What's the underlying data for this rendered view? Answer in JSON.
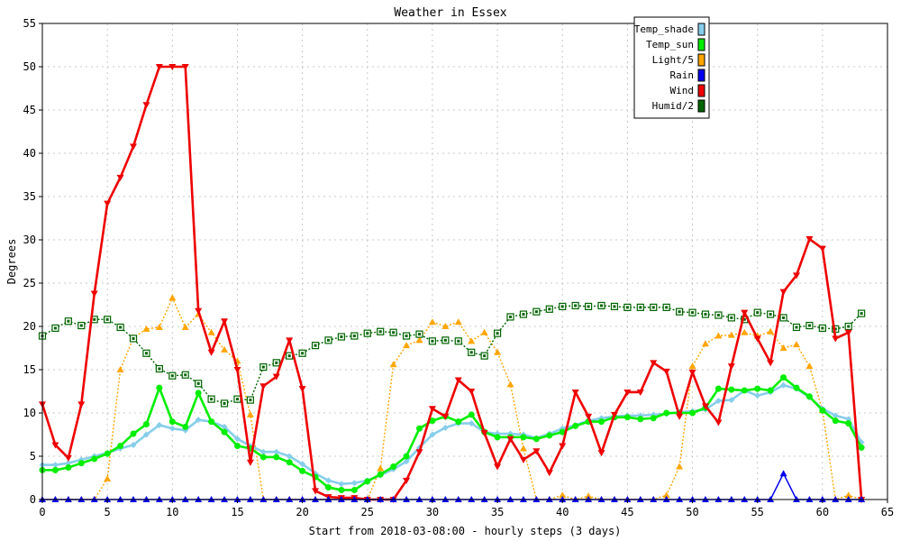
{
  "chart_data": {
    "type": "line",
    "title": "Weather in Essex",
    "xlabel": "Start from 2018-03-08:00 - hourly steps (3 days)",
    "ylabel": "Degrees",
    "xlim": [
      0,
      65
    ],
    "ylim": [
      0,
      55
    ],
    "xticks": [
      0,
      5,
      10,
      15,
      20,
      25,
      30,
      35,
      40,
      45,
      50,
      55,
      60,
      65
    ],
    "yticks": [
      0,
      5,
      10,
      15,
      20,
      25,
      30,
      35,
      40,
      45,
      50,
      55
    ],
    "grid": true,
    "legend_position": "top-right",
    "x": [
      0,
      1,
      2,
      3,
      4,
      5,
      6,
      7,
      8,
      9,
      10,
      11,
      12,
      13,
      14,
      15,
      16,
      17,
      18,
      19,
      20,
      21,
      22,
      23,
      24,
      25,
      26,
      27,
      28,
      29,
      30,
      31,
      32,
      33,
      34,
      35,
      36,
      37,
      38,
      39,
      40,
      41,
      42,
      43,
      44,
      45,
      46,
      47,
      48,
      49,
      50,
      51,
      52,
      53,
      54,
      55,
      56,
      57,
      58,
      59,
      60,
      61,
      62,
      63
    ],
    "series": [
      {
        "name": "Temp_shade",
        "color": "#87ceeb",
        "style": "solid-thick",
        "values": [
          4.0,
          4.0,
          4.2,
          4.6,
          5.0,
          5.4,
          5.9,
          6.3,
          7.5,
          8.6,
          8.2,
          8.0,
          9.2,
          9.0,
          8.4,
          7.0,
          6.2,
          5.5,
          5.5,
          5.0,
          4.1,
          3.0,
          2.2,
          1.8,
          1.9,
          2.2,
          2.8,
          3.5,
          4.4,
          6.0,
          7.5,
          8.3,
          8.8,
          8.8,
          7.8,
          7.6,
          7.6,
          7.5,
          7.1,
          7.6,
          8.2,
          8.6,
          9.1,
          9.4,
          9.6,
          9.7,
          9.7,
          9.8,
          9.9,
          10.1,
          10.2,
          10.4,
          11.4,
          11.5,
          12.6,
          12.0,
          12.4,
          13.2,
          12.8,
          11.8,
          10.5,
          9.7,
          9.3,
          6.6
        ]
      },
      {
        "name": "Temp_sun",
        "color": "#00ee00",
        "style": "solid-thick",
        "values": [
          3.4,
          3.4,
          3.7,
          4.2,
          4.7,
          5.3,
          6.2,
          7.6,
          8.7,
          12.9,
          9.0,
          8.4,
          12.3,
          9.0,
          7.8,
          6.2,
          5.9,
          4.9,
          4.9,
          4.3,
          3.3,
          2.6,
          1.4,
          1.1,
          1.1,
          2.1,
          2.9,
          3.8,
          5.0,
          8.2,
          9.1,
          9.6,
          9.0,
          9.8,
          7.8,
          7.2,
          7.2,
          7.2,
          7.0,
          7.4,
          7.8,
          8.5,
          9.0,
          9.0,
          9.5,
          9.5,
          9.3,
          9.4,
          10.0,
          10.0,
          10.0,
          10.6,
          12.8,
          12.7,
          12.6,
          12.8,
          12.6,
          14.1,
          12.9,
          11.9,
          10.3,
          9.1,
          8.8,
          6.0
        ]
      },
      {
        "name": "Light/5",
        "color": "#ffa500",
        "style": "dotted",
        "values": [
          0,
          0,
          0,
          0,
          0,
          2.4,
          15.0,
          18.7,
          19.7,
          19.9,
          23.3,
          19.9,
          21.4,
          19.3,
          17.3,
          16.0,
          9.8,
          0,
          0,
          0,
          0,
          0,
          0,
          0,
          0,
          0,
          3.6,
          15.6,
          17.8,
          18.4,
          20.5,
          20.0,
          20.5,
          18.3,
          19.3,
          17.0,
          13.3,
          5.9,
          0,
          0,
          0.5,
          0,
          0.4,
          0,
          0,
          0,
          0,
          0,
          0.5,
          3.8,
          15.4,
          18.0,
          18.9,
          19.0,
          19.3,
          18.9,
          19.4,
          17.5,
          17.9,
          15.4,
          10.3,
          0,
          0.5,
          0
        ]
      },
      {
        "name": "Rain",
        "color": "#0000ee",
        "style": "solid",
        "values": [
          0,
          0,
          0,
          0,
          0,
          0,
          0,
          0,
          0,
          0,
          0,
          0,
          0,
          0,
          0,
          0,
          0,
          0,
          0,
          0,
          0,
          0,
          0,
          0,
          0,
          0,
          0,
          0,
          0,
          0,
          0,
          0,
          0,
          0,
          0,
          0,
          0,
          0,
          0,
          0,
          0,
          0,
          0,
          0,
          0,
          0,
          0,
          0,
          0,
          0,
          0,
          0,
          0,
          0,
          0,
          0,
          0,
          3.0,
          0,
          0,
          0,
          0,
          0,
          0
        ]
      },
      {
        "name": "Wind",
        "color": "#ee0000",
        "style": "solid-thick",
        "values": [
          11.0,
          6.3,
          4.8,
          11.0,
          23.8,
          34.2,
          37.2,
          40.8,
          45.6,
          50.0,
          50.0,
          50.0,
          21.8,
          17.0,
          20.6,
          15.0,
          4.3,
          13.1,
          14.2,
          18.4,
          12.8,
          1.0,
          0.3,
          0.2,
          0.2,
          0,
          0,
          0,
          2.2,
          5.5,
          10.5,
          9.6,
          13.8,
          12.5,
          7.7,
          3.8,
          7.0,
          4.6,
          5.6,
          3.1,
          6.2,
          12.4,
          9.6,
          5.4,
          9.8,
          12.4,
          12.4,
          15.8,
          14.8,
          9.6,
          14.7,
          10.8,
          8.9,
          15.4,
          21.6,
          18.6,
          15.8,
          24.0,
          25.9,
          30.1,
          29.0,
          18.6,
          19.3,
          0
        ]
      },
      {
        "name": "Humid/2",
        "color": "#006400",
        "style": "dotted",
        "values": [
          18.9,
          19.8,
          20.6,
          20.1,
          20.8,
          20.8,
          19.9,
          18.6,
          16.9,
          15.1,
          14.3,
          14.4,
          13.4,
          11.6,
          11.1,
          11.6,
          11.5,
          15.3,
          15.8,
          16.6,
          16.9,
          17.8,
          18.4,
          18.8,
          18.9,
          19.2,
          19.4,
          19.3,
          18.9,
          19.1,
          18.3,
          18.4,
          18.3,
          17.0,
          16.6,
          19.2,
          21.1,
          21.4,
          21.7,
          22.0,
          22.3,
          22.4,
          22.3,
          22.4,
          22.3,
          22.2,
          22.2,
          22.2,
          22.2,
          21.7,
          21.6,
          21.4,
          21.3,
          21.0,
          20.8,
          21.6,
          21.4,
          21.0,
          19.9,
          20.1,
          19.8,
          19.7,
          20.0,
          21.5
        ]
      }
    ]
  }
}
